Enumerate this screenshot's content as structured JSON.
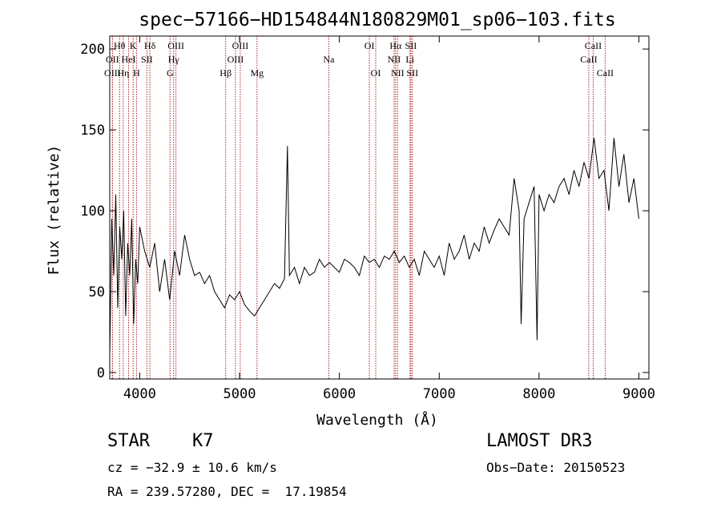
{
  "chart_data": {
    "type": "line",
    "title": "spec−57166−HD154844N180829M01_sp06−103.fits",
    "xlabel": "Wavelength (Å)",
    "ylabel": "Flux (relative)",
    "xlim": [
      3700,
      9100
    ],
    "ylim": [
      -4,
      208
    ],
    "xticks": [
      4000,
      5000,
      6000,
      7000,
      8000,
      9000
    ],
    "yticks": [
      0,
      50,
      100,
      150,
      200
    ],
    "grid": false,
    "line_color": "#000000",
    "marker_color": "#b22222",
    "series": [
      {
        "x": [
          3700,
          3720,
          3740,
          3760,
          3780,
          3800,
          3820,
          3840,
          3860,
          3880,
          3900,
          3920,
          3940,
          3960,
          3980,
          4000,
          4050,
          4100,
          4150,
          4200,
          4250,
          4300,
          4350,
          4400,
          4450,
          4500,
          4550,
          4600,
          4650,
          4700,
          4750,
          4800,
          4850,
          4900,
          4950,
          5000,
          5050,
          5100,
          5150,
          5200,
          5250,
          5300,
          5350,
          5400,
          5450,
          5480,
          5500,
          5550,
          5600,
          5650,
          5700,
          5750,
          5800,
          5850,
          5900,
          5950,
          6000,
          6050,
          6100,
          6150,
          6200,
          6250,
          6300,
          6350,
          6400,
          6450,
          6500,
          6550,
          6600,
          6650,
          6700,
          6750,
          6800,
          6850,
          6900,
          6950,
          7000,
          7050,
          7100,
          7150,
          7200,
          7250,
          7300,
          7350,
          7400,
          7450,
          7500,
          7550,
          7600,
          7650,
          7700,
          7750,
          7800,
          7820,
          7850,
          7900,
          7950,
          7980,
          8000,
          8050,
          8100,
          8150,
          8200,
          8250,
          8300,
          8350,
          8400,
          8450,
          8500,
          8550,
          8600,
          8650,
          8700,
          8750,
          8800,
          8850,
          8900,
          8950,
          9000
        ],
        "y": [
          10,
          95,
          60,
          110,
          40,
          90,
          70,
          100,
          35,
          80,
          60,
          95,
          30,
          70,
          55,
          90,
          75,
          65,
          80,
          50,
          70,
          45,
          75,
          60,
          85,
          70,
          60,
          62,
          55,
          60,
          50,
          45,
          40,
          48,
          45,
          50,
          42,
          38,
          35,
          40,
          45,
          50,
          55,
          52,
          58,
          140,
          60,
          65,
          55,
          65,
          60,
          62,
          70,
          65,
          68,
          65,
          62,
          70,
          68,
          65,
          60,
          72,
          68,
          70,
          65,
          72,
          70,
          75,
          68,
          72,
          65,
          70,
          60,
          75,
          70,
          65,
          72,
          60,
          80,
          70,
          75,
          85,
          70,
          80,
          75,
          90,
          80,
          88,
          95,
          90,
          85,
          120,
          100,
          30,
          95,
          105,
          115,
          20,
          110,
          100,
          110,
          105,
          115,
          120,
          110,
          125,
          115,
          130,
          120,
          145,
          120,
          125,
          100,
          145,
          115,
          135,
          105,
          120,
          95
        ]
      }
    ],
    "line_markers": [
      {
        "wavelength": 3727,
        "label": "OII",
        "row": 1
      },
      {
        "wavelength": 3727,
        "label": "OIII",
        "row": 2
      },
      {
        "wavelength": 3798,
        "label": "Hθ",
        "row": 0
      },
      {
        "wavelength": 3835,
        "label": "Hη",
        "row": 2
      },
      {
        "wavelength": 3889,
        "label": "HeI",
        "row": 1
      },
      {
        "wavelength": 3934,
        "label": "K",
        "row": 0
      },
      {
        "wavelength": 3968,
        "label": "H",
        "row": 2
      },
      {
        "wavelength": 4072,
        "label": "SII",
        "row": 1
      },
      {
        "wavelength": 4102,
        "label": "Hδ",
        "row": 0
      },
      {
        "wavelength": 4304,
        "label": "G",
        "row": 2
      },
      {
        "wavelength": 4340,
        "label": "Hγ",
        "row": 1
      },
      {
        "wavelength": 4363,
        "label": "OIII",
        "row": 0
      },
      {
        "wavelength": 4861,
        "label": "Hβ",
        "row": 2
      },
      {
        "wavelength": 4959,
        "label": "OIII",
        "row": 1
      },
      {
        "wavelength": 5007,
        "label": "OIII",
        "row": 0
      },
      {
        "wavelength": 5175,
        "label": "Mg",
        "row": 2
      },
      {
        "wavelength": 5894,
        "label": "Na",
        "row": 1
      },
      {
        "wavelength": 6300,
        "label": "OI",
        "row": 0
      },
      {
        "wavelength": 6364,
        "label": "OI",
        "row": 2
      },
      {
        "wavelength": 6548,
        "label": "NII",
        "row": 1
      },
      {
        "wavelength": 6563,
        "label": "Hα",
        "row": 0
      },
      {
        "wavelength": 6583,
        "label": "NII",
        "row": 2
      },
      {
        "wavelength": 6707,
        "label": "Li",
        "row": 1
      },
      {
        "wavelength": 6716,
        "label": "SII",
        "row": 0
      },
      {
        "wavelength": 6731,
        "label": "SII",
        "row": 2
      },
      {
        "wavelength": 8498,
        "label": "CaII",
        "row": 1
      },
      {
        "wavelength": 8542,
        "label": "CaII",
        "row": 0
      },
      {
        "wavelength": 8662,
        "label": "CaII",
        "row": 2
      }
    ]
  },
  "info": {
    "object_class": "STAR",
    "subclass": "K7",
    "survey": "LAMOST DR3",
    "cz": "cz = −32.9 ± 10.6 km/s",
    "obs_date": "Obs−Date: 20150523",
    "coords": "RA = 239.57280, DEC =  17.19854"
  }
}
